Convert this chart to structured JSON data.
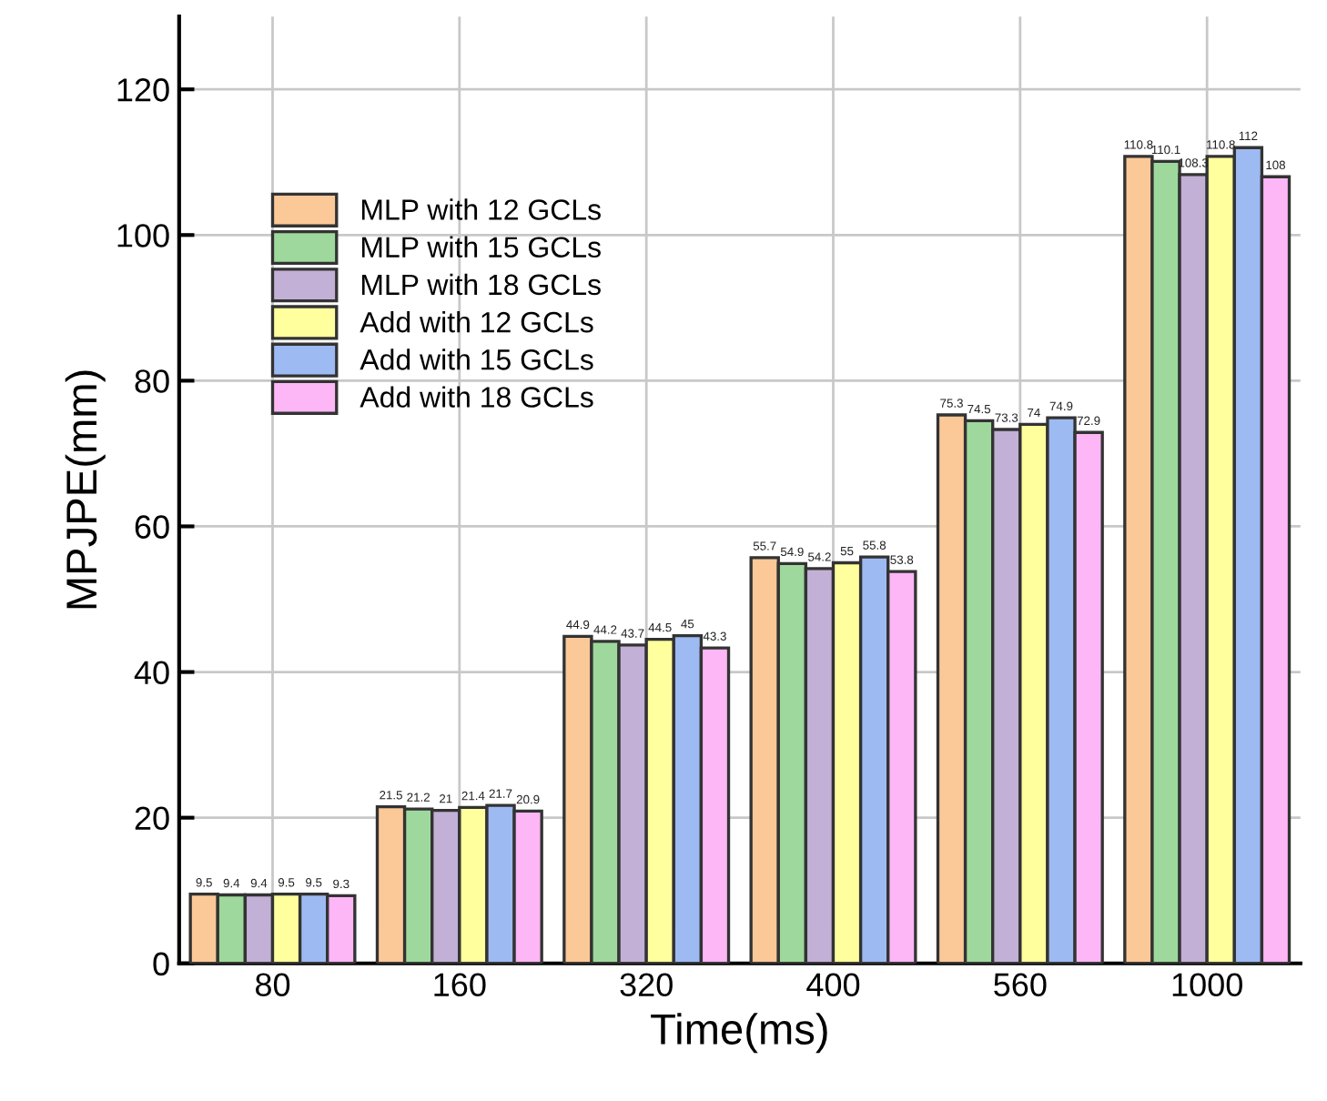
{
  "chart_data": {
    "type": "bar",
    "xlabel": "Time(ms)",
    "ylabel": "MPJPE(mm)",
    "categories": [
      "80",
      "160",
      "320",
      "400",
      "560",
      "1000"
    ],
    "series": [
      {
        "name": "MLP with 12 GCLs",
        "color": "#fbc898",
        "values": [
          9.5,
          21.5,
          44.9,
          55.7,
          75.3,
          110.8
        ]
      },
      {
        "name": "MLP with 15 GCLs",
        "color": "#9fd89c",
        "values": [
          9.4,
          21.2,
          44.2,
          54.9,
          74.5,
          110.1
        ]
      },
      {
        "name": "MLP with 18 GCLs",
        "color": "#c3b0d6",
        "values": [
          9.4,
          21,
          43.7,
          54.2,
          73.3,
          108.3
        ]
      },
      {
        "name": "Add with 12 GCLs",
        "color": "#ffff9e",
        "values": [
          9.5,
          21.4,
          44.5,
          55,
          74,
          110.8
        ]
      },
      {
        "name": "Add with 15 GCLs",
        "color": "#9dbaf2",
        "values": [
          9.5,
          21.7,
          45,
          55.8,
          74.9,
          112
        ]
      },
      {
        "name": "Add with 18 GCLs",
        "color": "#fdb6f6",
        "values": [
          9.3,
          20.9,
          43.3,
          53.8,
          72.9,
          108
        ]
      }
    ],
    "ylim": [
      0,
      130
    ],
    "yticks": [
      0,
      20,
      40,
      60,
      80,
      100,
      120
    ],
    "data_labels": true,
    "grid": true,
    "legend": "top left"
  }
}
